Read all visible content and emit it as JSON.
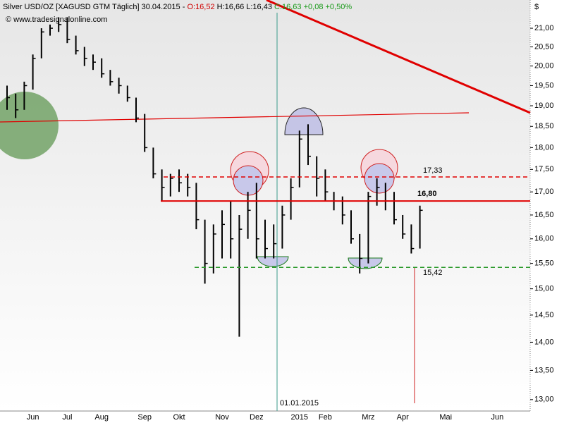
{
  "chart_data": {
    "type": "ohlc",
    "header": {
      "instrument": "Silver USD/OZ [XAGUSD GTM  Täglich] 30.04.2015 -",
      "open": "O:16,52",
      "high": "H:16,66",
      "low": "L:16,43",
      "close": "C:16,63",
      "change": "+0,08 +0,50%"
    },
    "watermark": "© www.tradesignalonline.com",
    "y_label": "$",
    "date_marker": "01.01.2015",
    "categories": [
      null,
      null,
      null,
      "Jun",
      null,
      null,
      null,
      "Jul",
      null,
      null,
      null,
      "Aug",
      null,
      null,
      null,
      null,
      "Sep",
      null,
      null,
      null,
      "Okt",
      null,
      null,
      null,
      null,
      "Nov",
      null,
      null,
      null,
      "Dez",
      null,
      null,
      null,
      null,
      "2015",
      null,
      null,
      "Feb",
      null,
      null,
      null,
      null,
      "Mrz",
      null,
      null,
      null,
      "Apr",
      null,
      null,
      null,
      null,
      "Mai",
      null,
      null,
      null,
      null,
      null,
      "Jun",
      null,
      null,
      null
    ],
    "high": [
      19.5,
      19.3,
      19.6,
      20.3,
      21.0,
      21.1,
      21.3,
      21.3,
      20.8,
      20.5,
      20.3,
      20.2,
      19.9,
      19.7,
      19.5,
      19.2,
      18.8,
      18.0,
      17.5,
      17.4,
      17.5,
      17.4,
      17.2,
      16.4,
      16.3,
      16.6,
      16.8,
      16.5,
      17.0,
      17.2,
      16.4,
      16.3,
      16.7,
      17.3,
      18.4,
      18.55,
      17.8,
      17.5,
      17.0,
      16.9,
      16.6,
      16.1,
      17.0,
      17.3,
      17.2,
      17.0,
      16.5,
      16.3,
      16.7,
      null,
      null,
      null,
      null,
      null,
      null,
      null,
      null,
      null,
      null,
      null,
      null
    ],
    "low": [
      18.9,
      18.7,
      18.9,
      19.4,
      20.2,
      20.8,
      20.9,
      20.6,
      20.3,
      20.0,
      19.9,
      19.7,
      19.5,
      19.3,
      19.1,
      18.6,
      17.9,
      17.3,
      16.8,
      16.9,
      17.0,
      16.9,
      16.2,
      15.1,
      15.3,
      15.6,
      15.6,
      14.1,
      16.0,
      15.6,
      15.6,
      15.6,
      15.8,
      16.4,
      17.1,
      17.6,
      16.9,
      16.8,
      16.6,
      16.3,
      15.9,
      15.3,
      15.5,
      16.7,
      16.6,
      16.3,
      16.0,
      15.7,
      15.8,
      null,
      null,
      null,
      null,
      null,
      null,
      null,
      null,
      null,
      null,
      null,
      null
    ],
    "close": [
      19.2,
      18.9,
      19.5,
      20.2,
      20.9,
      21.0,
      21.1,
      20.7,
      20.4,
      20.2,
      20.1,
      19.8,
      19.6,
      19.5,
      19.2,
      18.7,
      18.0,
      17.4,
      17.1,
      17.3,
      17.2,
      17.1,
      16.4,
      15.5,
      16.1,
      16.3,
      16.0,
      16.2,
      16.6,
      16.0,
      15.8,
      15.9,
      16.5,
      17.1,
      18.2,
      17.8,
      17.3,
      17.0,
      16.8,
      16.5,
      16.0,
      15.6,
      16.9,
      17.1,
      16.8,
      16.4,
      16.1,
      15.8,
      16.6,
      null,
      null,
      null,
      null,
      null,
      null,
      null,
      null,
      null,
      null,
      null,
      null
    ],
    "color": "#000000",
    "log": true,
    "ylim": [
      12.81,
      21.78
    ],
    "yticks": [
      {
        "value": 13,
        "label": "13,00"
      },
      {
        "value": 13.5,
        "label": "13,50"
      },
      {
        "value": 14,
        "label": "14,00"
      },
      {
        "value": 14.5,
        "label": "14,50"
      },
      {
        "value": 15,
        "label": "15,00"
      },
      {
        "value": 15.5,
        "label": "15,50"
      },
      {
        "value": 16,
        "label": "16,00"
      },
      {
        "value": 16.5,
        "label": "16,50"
      },
      {
        "value": 17,
        "label": "17,00"
      },
      {
        "value": 17.5,
        "label": "17,50"
      },
      {
        "value": 18,
        "label": "18,00"
      },
      {
        "value": 18.5,
        "label": "18,50"
      },
      {
        "value": 19,
        "label": "19,00"
      },
      {
        "value": 19.5,
        "label": "19,50"
      },
      {
        "value": 20,
        "label": "20,00"
      },
      {
        "value": 20.5,
        "label": "20,50"
      },
      {
        "value": 21,
        "label": "21,00"
      }
    ],
    "levels": [
      {
        "value": 17.33,
        "label": "17,33",
        "color": "#e00000",
        "dashed": true
      },
      {
        "value": 16.8,
        "label": "16,80",
        "color": "#e00000",
        "dashed": false
      },
      {
        "value": 15.42,
        "label": "15,42",
        "color": "#2a9a2a",
        "dashed": true
      }
    ]
  }
}
